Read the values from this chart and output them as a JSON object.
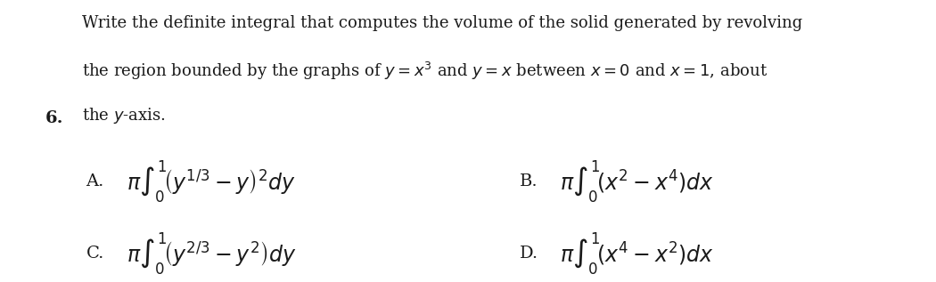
{
  "background_color": "#ffffff",
  "question_number": "6.",
  "question_text_line1": "Write the definite integral that computes the volume of the solid generated by revolving",
  "question_text_line2": "the region bounded by the graphs of $y = x^3$ and $y = x$ between $x = 0$ and $x = 1$, about",
  "question_text_line3": "the $y$-axis.",
  "option_A_label": "A.",
  "option_A_expr": "$\\pi \\int_0^1 \\!\\left(y^{1/3} - y\\right)^{2} dy$",
  "option_B_label": "B.",
  "option_B_expr": "$\\pi \\int_0^1 \\!\\left(x^2 - x^4\\right) dx$",
  "option_C_label": "C.",
  "option_C_expr": "$\\pi \\int_0^1 \\!\\left(y^{2/3} - y^2\\right) dy$",
  "option_D_label": "D.",
  "option_D_expr": "$\\pi \\int_0^1 \\!\\left(x^4 - x^2\\right) dx$",
  "text_color": "#1a1a1a",
  "fontsize_question": 13.0,
  "fontsize_number": 14,
  "fontsize_option_label": 14,
  "fontsize_option_expr": 17
}
